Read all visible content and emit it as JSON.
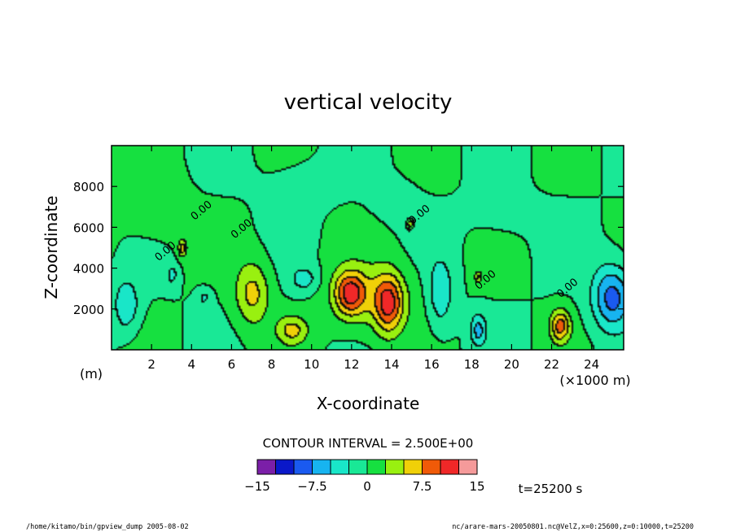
{
  "chart_data": {
    "type": "heatmap",
    "title": "vertical velocity",
    "xlabel": "X-coordinate",
    "ylabel": "Z-coordinate",
    "x_unit_label": "(×1000 m)",
    "y_unit_label": "(m)",
    "xlim": [
      0,
      25.6
    ],
    "ylim": [
      0,
      10000
    ],
    "x_ticks": [
      {
        "value": 2,
        "label": "2"
      },
      {
        "value": 4,
        "label": "4"
      },
      {
        "value": 6,
        "label": "6"
      },
      {
        "value": 8,
        "label": "8"
      },
      {
        "value": 10,
        "label": "10"
      },
      {
        "value": 12,
        "label": "12"
      },
      {
        "value": 14,
        "label": "14"
      },
      {
        "value": 16,
        "label": "16"
      },
      {
        "value": 18,
        "label": "18"
      },
      {
        "value": 20,
        "label": "20"
      },
      {
        "value": 22,
        "label": "22"
      },
      {
        "value": 24,
        "label": "24"
      }
    ],
    "y_ticks": [
      {
        "value": 2000,
        "label": "2000"
      },
      {
        "value": 4000,
        "label": "4000"
      },
      {
        "value": 6000,
        "label": "6000"
      },
      {
        "value": 8000,
        "label": "8000"
      }
    ],
    "contour_interval_text": "CONTOUR INTERVAL = 2.500E+00",
    "contour_labels": [
      {
        "x": 4.6,
        "z": 6700,
        "text": "0.00"
      },
      {
        "x": 6.6,
        "z": 5800,
        "text": "0.00"
      },
      {
        "x": 2.8,
        "z": 4700,
        "text": "0.00"
      },
      {
        "x": 15.5,
        "z": 6500,
        "text": "0.00"
      },
      {
        "x": 18.8,
        "z": 3300,
        "text": "0.00"
      },
      {
        "x": 22.9,
        "z": 2900,
        "text": "0.00"
      }
    ],
    "colorbar": {
      "levels": [
        -15,
        -12.5,
        -10,
        -7.5,
        -5,
        -2.5,
        0,
        2.5,
        5,
        7.5,
        10,
        12.5,
        15
      ],
      "colors": [
        "#7b1fa8",
        "#0a18c9",
        "#1a5af0",
        "#17b4f0",
        "#19e6c8",
        "#19e896",
        "#16e040",
        "#99f010",
        "#f0d008",
        "#f05a08",
        "#f02828",
        "#f59a9a"
      ],
      "tick_labels": [
        {
          "value": -15,
          "label": "−15"
        },
        {
          "value": -7.5,
          "label": "−7.5"
        },
        {
          "value": 0,
          "label": "0"
        },
        {
          "value": 7.5,
          "label": "7.5"
        },
        {
          "value": 15,
          "label": "15"
        }
      ]
    },
    "time_label": "t=25200 s",
    "fields": [
      {
        "id": "updraft-12",
        "x": 11.9,
        "z": 2800,
        "sx": 0.55,
        "sz": 750,
        "amp": 9.6
      },
      {
        "id": "updraft-13.8",
        "x": 13.8,
        "z": 2300,
        "sx": 0.5,
        "sz": 1000,
        "amp": 9.2
      },
      {
        "id": "updraft-13-broad",
        "x": 13.0,
        "z": 2600,
        "sx": 1.5,
        "sz": 1300,
        "amp": 3.2
      },
      {
        "id": "updraft-7",
        "x": 7.0,
        "z": 2800,
        "sx": 0.6,
        "sz": 1100,
        "amp": 5.8
      },
      {
        "id": "updraft-9",
        "x": 9.0,
        "z": 1000,
        "sx": 0.55,
        "sz": 500,
        "amp": 5.4
      },
      {
        "id": "updraft-22.5",
        "x": 22.4,
        "z": 1200,
        "sx": 0.35,
        "sz": 550,
        "amp": 8.2
      },
      {
        "id": "updraft-3.5",
        "x": 3.5,
        "z": 5000,
        "sx": 0.15,
        "sz": 300,
        "amp": 5.8
      },
      {
        "id": "updraft-18.3",
        "x": 18.3,
        "z": 3600,
        "sx": 0.12,
        "sz": 200,
        "amp": 5.5
      },
      {
        "id": "updraft-15",
        "x": 14.9,
        "z": 6200,
        "sx": 0.1,
        "sz": 150,
        "amp": 5.5
      },
      {
        "id": "downdraft-25",
        "x": 25.0,
        "z": 2600,
        "sx": 0.7,
        "sz": 1100,
        "amp": -8.6
      },
      {
        "id": "downdraft-1",
        "x": 0.7,
        "z": 2200,
        "sx": 0.45,
        "sz": 900,
        "amp": -4.8
      },
      {
        "id": "downdraft-16.5",
        "x": 16.4,
        "z": 2800,
        "sx": 0.45,
        "sz": 1200,
        "amp": -4.6
      },
      {
        "id": "downdraft-18.3",
        "x": 18.3,
        "z": 1000,
        "sx": 0.28,
        "sz": 550,
        "amp": -5.6
      },
      {
        "id": "downdraft-9.6",
        "x": 9.6,
        "z": 3500,
        "sx": 0.5,
        "sz": 450,
        "amp": -3.6
      },
      {
        "id": "downdraft-3",
        "x": 3.0,
        "z": 3700,
        "sx": 0.2,
        "sz": 400,
        "amp": -3.2
      },
      {
        "id": "downdraft-4.5",
        "x": 4.6,
        "z": 2600,
        "sx": 0.25,
        "sz": 300,
        "amp": -3.0
      },
      {
        "id": "weak-up-2",
        "x": 2.0,
        "z": 6800,
        "sx": 1.2,
        "sz": 1400,
        "amp": 1.2
      },
      {
        "id": "weak-down-14",
        "x": 14.0,
        "z": 7400,
        "sx": 0.8,
        "sz": 700,
        "amp": -1.2
      },
      {
        "id": "weak-down-9",
        "x": 9.5,
        "z": 8200,
        "sx": 1.3,
        "sz": 900,
        "amp": -1.0
      },
      {
        "id": "weak-down-19",
        "x": 19.5,
        "z": 6500,
        "sx": 1.2,
        "sz": 800,
        "amp": -0.9
      }
    ]
  },
  "footer": {
    "left": "/home/kitamo/bin/gpview_dump  2005-08-02",
    "right": "nc/arare-mars-20050801.nc@VelZ,x=0:25600,z=0:10000,t=25200"
  }
}
